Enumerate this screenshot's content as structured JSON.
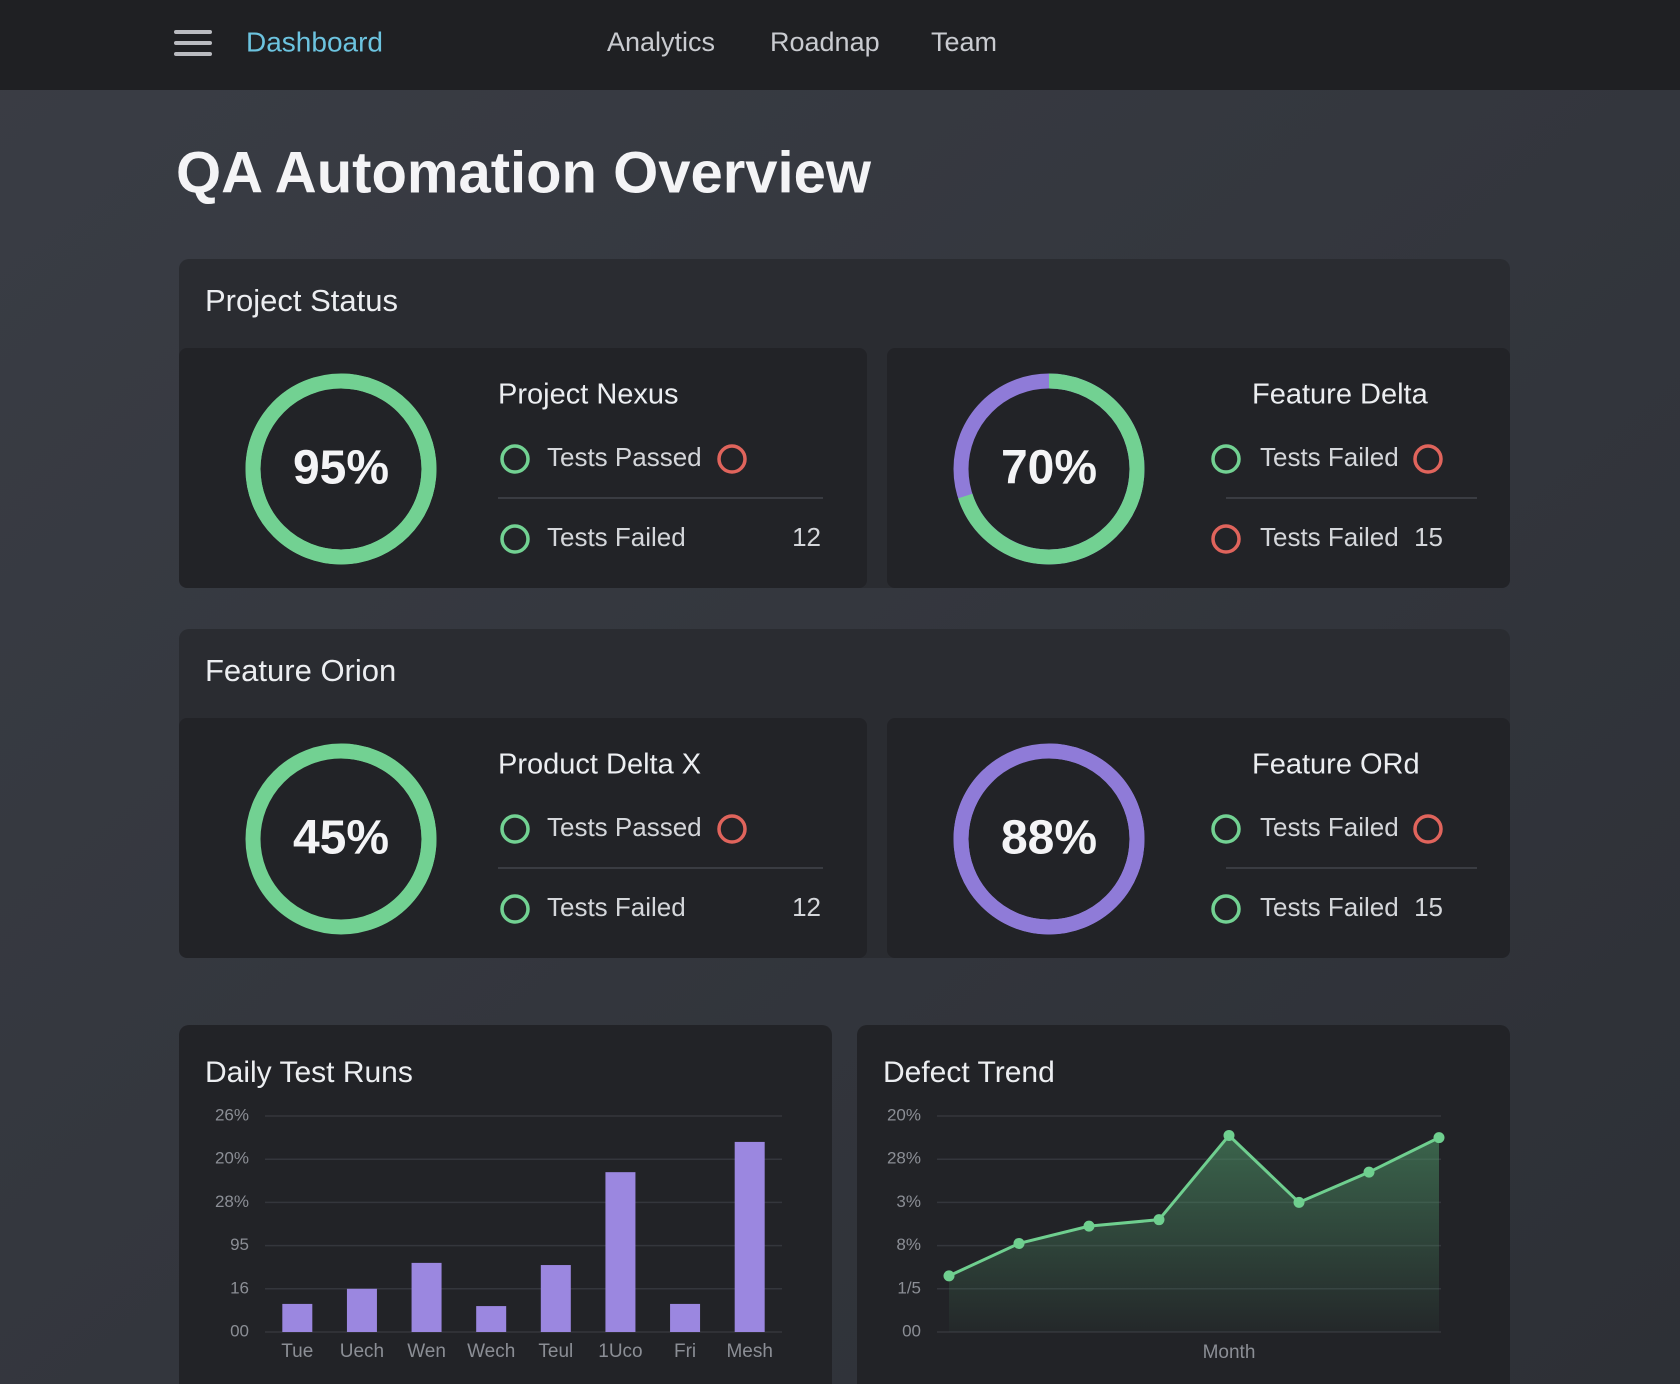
{
  "nav": {
    "brand": "Dashboard",
    "links": [
      "Analytics",
      "Roadnap",
      "Team"
    ]
  },
  "page_title": "QA Automation Overview",
  "sections": [
    {
      "title": "Project Status",
      "cards": [
        {
          "title": "Project Nexus",
          "donut": {
            "value": 95,
            "value_label": "95%",
            "color": "#72d192",
            "track_color": "#72d192"
          },
          "rows": [
            {
              "label": "Tests Passed",
              "icon_color": "#72d192",
              "status_color": "#e0645c"
            },
            {
              "label": "Tests Failed",
              "icon_color": "#72d192",
              "count": 12
            }
          ]
        },
        {
          "title": "Feature Delta",
          "donut": {
            "value": 70,
            "value_label": "70%",
            "color": "#72d192",
            "track_color": "#8f7bd8"
          },
          "rows": [
            {
              "label": "Tests Failed",
              "icon_color": "#72d192",
              "status_color": "#e0645c"
            },
            {
              "label": "Tests Failed",
              "icon_color": "#e0645c",
              "count": 15
            }
          ]
        }
      ]
    },
    {
      "title": "Feature Orion",
      "cards": [
        {
          "title": "Product Delta X",
          "donut": {
            "value": 45,
            "value_label": "45%",
            "color": "#72d192",
            "track_color": "#72d192"
          },
          "rows": [
            {
              "label": "Tests Passed",
              "icon_color": "#72d192",
              "status_color": "#e0645c"
            },
            {
              "label": "Tests Failed",
              "icon_color": "#72d192",
              "count": 12
            }
          ]
        },
        {
          "title": "Feature ORd",
          "donut": {
            "value": 88,
            "value_label": "88%",
            "color": "#8f7bd8",
            "track_color": "#8f7bd8"
          },
          "rows": [
            {
              "label": "Tests Failed",
              "icon_color": "#72d192",
              "status_color": "#e0645c"
            },
            {
              "label": "Tests Failed",
              "icon_color": "#72d192",
              "count": 15
            }
          ]
        }
      ]
    }
  ],
  "chart_data": [
    {
      "type": "bar",
      "title": "Daily Test Runs",
      "categories": [
        "Tue",
        "Uech",
        "Wen",
        "Wech",
        "Teul",
        "1Uco",
        "Fri",
        "Mesh"
      ],
      "values": [
        0.65,
        1.0,
        1.6,
        0.6,
        1.55,
        3.7,
        0.65,
        4.4
      ],
      "color": "#9b87e0",
      "ylim": [
        0,
        5
      ],
      "yticks": [
        {
          "value": 0,
          "label": "00"
        },
        {
          "value": 1,
          "label": "16"
        },
        {
          "value": 2,
          "label": "95"
        },
        {
          "value": 3,
          "label": "28%"
        },
        {
          "value": 4,
          "label": "20%"
        },
        {
          "value": 5,
          "label": "26%"
        }
      ],
      "grid": true
    },
    {
      "type": "line",
      "title": "Defect Trend",
      "x_label": "Month",
      "categories": [
        null,
        null,
        null,
        null,
        null,
        null,
        null,
        null
      ],
      "values": [
        1.3,
        2.05,
        2.45,
        2.6,
        4.55,
        3.0,
        3.7,
        4.5
      ],
      "color": "#6fcf8f",
      "ylim": [
        0,
        5
      ],
      "yticks": [
        {
          "value": 0,
          "label": "00"
        },
        {
          "value": 1,
          "label": "1/5"
        },
        {
          "value": 2,
          "label": "8%"
        },
        {
          "value": 3,
          "label": "3%"
        },
        {
          "value": 4,
          "label": "28%"
        },
        {
          "value": 5,
          "label": "20%"
        }
      ],
      "grid": true
    }
  ]
}
